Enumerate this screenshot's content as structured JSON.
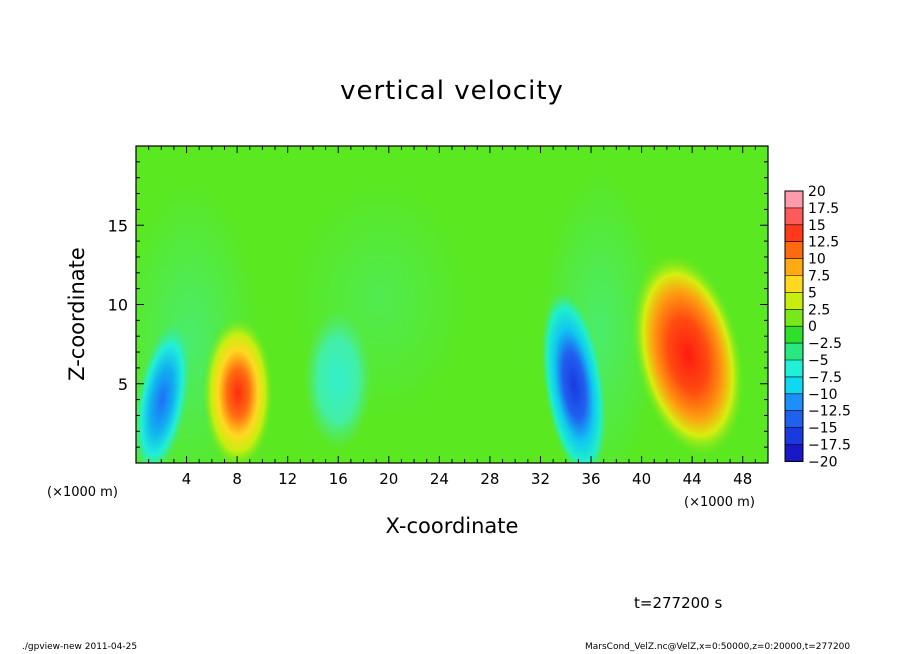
{
  "header": {
    "title": "vertical velocity"
  },
  "chart_data": {
    "type": "heatmap",
    "title": "vertical velocity",
    "xlabel": "X-coordinate",
    "ylabel": "Z-coordinate",
    "x_unit_label": "(×1000 m)",
    "xlim": [
      0,
      50
    ],
    "ylim": [
      0,
      20
    ],
    "x_ticks": [
      "4",
      "8",
      "12",
      "16",
      "20",
      "24",
      "28",
      "32",
      "36",
      "40",
      "44",
      "48"
    ],
    "y_ticks": [
      "5",
      "10",
      "15"
    ],
    "colorbar": {
      "levels": [
        "20",
        "17.5",
        "15",
        "12.5",
        "10",
        "7.5",
        "5",
        "2.5",
        "0",
        "−2.5",
        "−5",
        "−7.5",
        "−10",
        "−12.5",
        "−15",
        "−17.5",
        "−20"
      ],
      "colors": [
        "#ff9aa8",
        "#ff5a5a",
        "#ff3a1a",
        "#ff6a10",
        "#ffaa10",
        "#ffd820",
        "#c8ee10",
        "#78e81a",
        "#2ee02a",
        "#2ae880",
        "#20f0d8",
        "#10d8f0",
        "#1e8ef8",
        "#2060f0",
        "#1a3ae0",
        "#1818c8",
        "#6a18c0"
      ]
    },
    "features": [
      {
        "kind": "updraft",
        "x": 8.2,
        "z": 4.2,
        "peak": 12.5
      },
      {
        "kind": "updraft",
        "x": 43.5,
        "z": 5.8,
        "peak": 15
      },
      {
        "kind": "downdraft",
        "x": 2.3,
        "z": 3.6,
        "peak": -7.5
      },
      {
        "kind": "downdraft",
        "x": 35.0,
        "z": 4.8,
        "peak": -12.5
      },
      {
        "kind": "downdraft",
        "x": 15.5,
        "z": 5.5,
        "peak": -5
      }
    ]
  },
  "time_label": "t=277200 s",
  "footer": {
    "left": "./gpview-new  2011-04-25",
    "right": "MarsCond_VelZ.nc@VelZ,x=0:50000,z=0:20000,t=277200"
  }
}
